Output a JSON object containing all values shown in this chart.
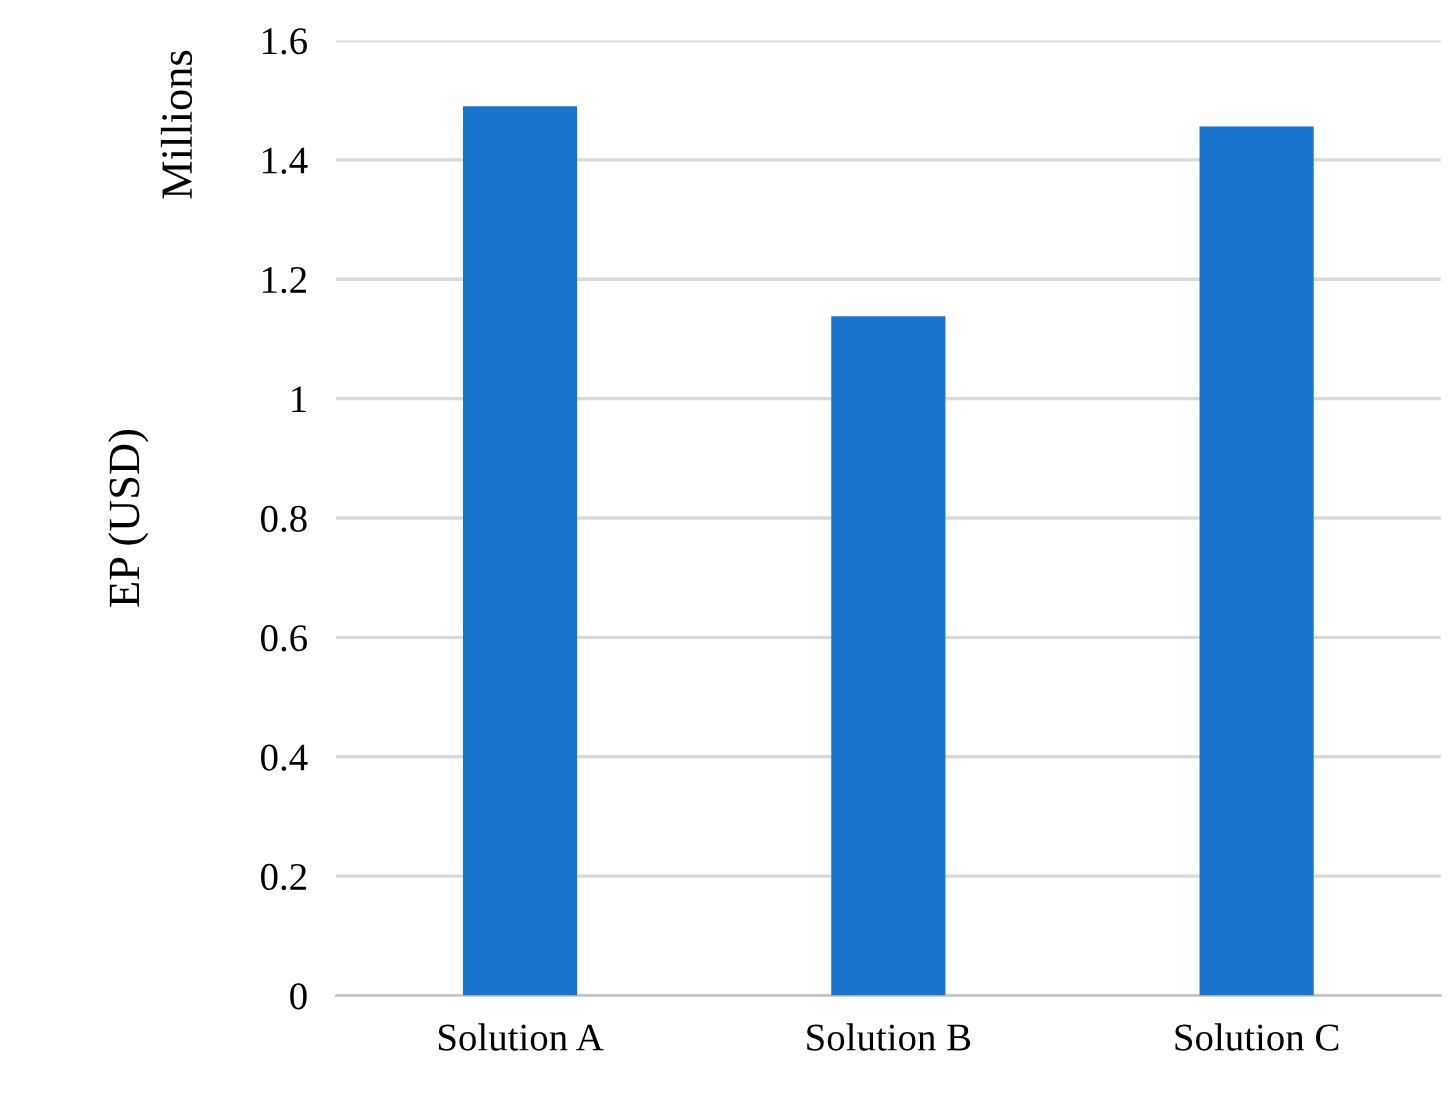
{
  "chart_data": {
    "type": "bar",
    "ylabel": "EP (USD)",
    "annotations": [
      "Millions"
    ],
    "categories": [
      "Solution A",
      "Solution B",
      "Solution C"
    ],
    "values": [
      1.49,
      1.138,
      1.456
    ],
    "color": "#1874cd",
    "ylim": [
      0,
      1.6
    ],
    "yticks": [
      0,
      0.2,
      0.4,
      0.6,
      0.8,
      1,
      1.2,
      1.4,
      1.6
    ],
    "grid": "y"
  }
}
